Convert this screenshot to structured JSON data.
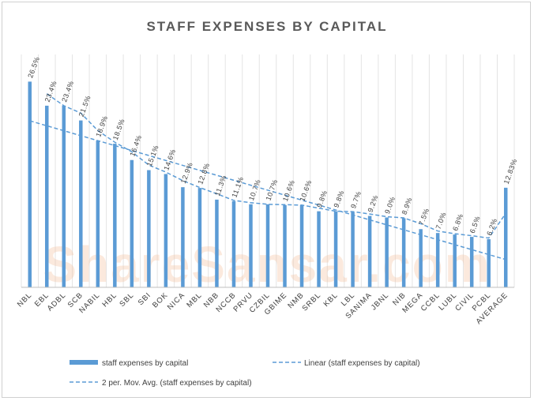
{
  "chart_data": {
    "type": "bar",
    "title": "STAFF EXPENSES BY CAPITAL",
    "categories": [
      "NBL",
      "EBL",
      "ADBL",
      "SCB",
      "NABIL",
      "HBL",
      "SBL",
      "SBI",
      "BOK",
      "NICA",
      "MBL",
      "NBB",
      "NCCB",
      "PRVU",
      "CZBIL",
      "GBIME",
      "NMB",
      "SRBL",
      "KBL",
      "LBL",
      "SANIMA",
      "JBNL",
      "NIB",
      "MEGA",
      "CCBL",
      "LUBL",
      "CIVIL",
      "PCBL",
      "AVERAGE"
    ],
    "values": [
      26.5,
      23.4,
      23.4,
      21.5,
      18.9,
      18.5,
      16.4,
      15.1,
      14.6,
      12.9,
      12.8,
      11.3,
      11.1,
      10.7,
      10.7,
      10.6,
      10.6,
      9.8,
      9.8,
      9.7,
      9.2,
      9.0,
      8.9,
      7.5,
      7.0,
      6.8,
      6.5,
      6.2,
      12.83
    ],
    "data_labels": [
      "26.5%",
      "23.4%",
      "23.4%",
      "21.5%",
      "18.9%",
      "18.5%",
      "16.4%",
      "15.1%",
      "14.6%",
      "12.9%",
      "12.8%",
      "11.3%",
      "11.1%",
      "10.7%",
      "10.7%",
      "10.6%",
      "10.6%",
      "9.8%",
      "9.8%",
      "9.7%",
      "9.2%",
      "9.0%",
      "8.9%",
      "7.5%",
      "7.0%",
      "6.8%",
      "6.5%",
      "6.2%",
      "12.83%"
    ],
    "ylim": [
      0,
      30
    ],
    "grid": true,
    "xlabel": "",
    "ylabel": "",
    "series": [
      {
        "name": "staff expenses by capital",
        "style": "bar",
        "color": "#5b9bd5"
      },
      {
        "name": "Linear (staff expenses by capital)",
        "style": "dashed-line",
        "color": "#5b9bd5"
      },
      {
        "name": "2 per. Mov. Avg. (staff expenses by capital)",
        "style": "dashed-line",
        "color": "#5b9bd5"
      }
    ],
    "legend_position": "bottom"
  },
  "watermark": "ShareSansar.com",
  "colors": {
    "bar": "#5b9bd5",
    "title": "#595959",
    "watermark": "#f4c2a1"
  }
}
